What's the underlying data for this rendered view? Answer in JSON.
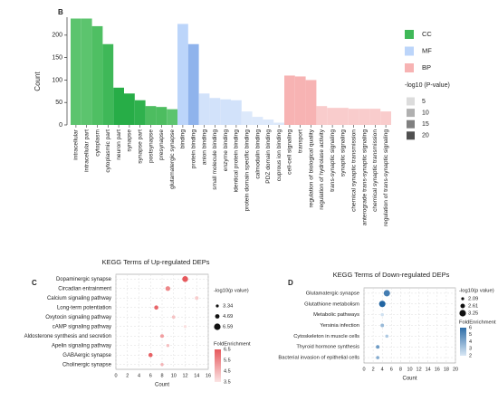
{
  "chart_data": [
    {
      "type": "bar",
      "label": "B",
      "y_label": "Count",
      "categories": [
        "intracellular",
        "intracellular part",
        "cytoplasm",
        "cytoplasmic part",
        "neuron part",
        "synapse",
        "synapse part",
        "postsynapse",
        "presynapse",
        "glutamatergic synapse",
        "binding",
        "protein binding",
        "anion binding",
        "small molecule binding",
        "enzyme binding",
        "identical protein binding",
        "protein domain specific binding",
        "calmodulin binding",
        "PDZ domain binding",
        "cuprous ion binding",
        "cell-cell signaling",
        "transport",
        "regulation of biological quality",
        "regulation of hydrolase activity",
        "trans-synaptic signaling",
        "synaptic signaling",
        "chemical synaptic transmission",
        "anterograde trans-synaptic signaling",
        "chemical synaptic transmission",
        "regulation of trans-synaptic signaling"
      ],
      "values": [
        237,
        237,
        220,
        180,
        83,
        70,
        55,
        42,
        40,
        35,
        225,
        180,
        70,
        60,
        57,
        55,
        30,
        18,
        12,
        5,
        110,
        108,
        100,
        42,
        38,
        38,
        36,
        36,
        36,
        30
      ],
      "colors": [
        "#5cc46e",
        "#5cc46e",
        "#4fbf63",
        "#3fb858",
        "#27ad47",
        "#27ad47",
        "#2fb14d",
        "#4dbd60",
        "#4dbd60",
        "#5cc46e",
        "#bcd5fa",
        "#8fb3ec",
        "#d2e2fa",
        "#d2e2fa",
        "#d2e2fa",
        "#d2e2fa",
        "#dde9fb",
        "#dde9fb",
        "#dde9fb",
        "#dde9fb",
        "#f7b3b3",
        "#f7b3b3",
        "#f7b3b3",
        "#f9cccc",
        "#f9cccc",
        "#f9cccc",
        "#f9cccc",
        "#f9cccc",
        "#f9cccc",
        "#f9cccc"
      ],
      "ylim": [
        0,
        240
      ],
      "yticks": [
        0,
        50,
        100,
        150,
        200
      ],
      "groups": [
        {
          "name": "CC",
          "color": "#3fb858"
        },
        {
          "name": "MF",
          "color": "#bcd5fa"
        },
        {
          "name": "BP",
          "color": "#f7b3b3"
        }
      ],
      "shade_legend": {
        "title": "-log10 (P-value)",
        "ticks": [
          5,
          10,
          15,
          20
        ],
        "colors": [
          "#dcdcdc",
          "#b0b0b0",
          "#808080",
          "#505050"
        ]
      }
    },
    {
      "type": "dot",
      "label": "C",
      "title": "KEGG Terms of Up-regulated DEPs",
      "x_label": "Count",
      "categories": [
        "Dopaminergic synapse",
        "Circadian entrainment",
        "Calcium signaling pathway",
        "Long-term potentiation",
        "Oxytocin signaling pathway",
        "cAMP signaling pathway",
        "Aldosterone synthesis and secretion",
        "Apelin signaling pathway",
        "GABAergic synapse",
        "Cholinergic synapse"
      ],
      "values": [
        12,
        9,
        14,
        7,
        10,
        12,
        8,
        9,
        6,
        8
      ],
      "sizes": [
        6.0,
        5.0,
        4.0,
        4.5,
        3.8,
        3.4,
        4.0,
        3.5,
        4.5,
        3.5
      ],
      "fold_enrichment": [
        6.5,
        5.5,
        4.0,
        6.2,
        4.2,
        3.6,
        5.0,
        4.3,
        6.3,
        4.5
      ],
      "xlim": [
        0,
        16
      ],
      "xticks": [
        0,
        2,
        4,
        6,
        8,
        10,
        12,
        14,
        16
      ],
      "size_legend": {
        "title": "-log10(p value)",
        "values": [
          3.34,
          4.69,
          6.59
        ]
      },
      "color_legend": {
        "title": "FoldEnrichment",
        "ticks": [
          6.5,
          5.5,
          4.5,
          3.5
        ],
        "colors": [
          "#e6585c",
          "#fbe4e4"
        ]
      }
    },
    {
      "type": "dot",
      "label": "D",
      "title": "KEGG Terms of Down-regulated DEPs",
      "x_label": "Count",
      "categories": [
        "Glutamatergic synapse",
        "Glutathione metabolism",
        "Metabolic pathways",
        "Yersinia infection",
        "Cytoskeleton in muscle cells",
        "Thyroid hormone synthesis",
        "Bacterial invasion of epithelial cells"
      ],
      "values": [
        5,
        4,
        4,
        4,
        5,
        3,
        3
      ],
      "sizes": [
        3.2,
        3.2,
        2.2,
        2.3,
        2.2,
        2.3,
        2.2
      ],
      "fold_enrichment": [
        5.5,
        6.3,
        2.2,
        3.5,
        3.0,
        4.5,
        4.0
      ],
      "xlim": [
        0,
        20
      ],
      "xticks": [
        0,
        2,
        4,
        6,
        8,
        10,
        12,
        14,
        16,
        18,
        20
      ],
      "size_legend": {
        "title": "-log10(p value)",
        "values": [
          2.09,
          2.61,
          3.25
        ]
      },
      "color_legend": {
        "title": "FoldEnrichment",
        "ticks": [
          6,
          5,
          4,
          3,
          2
        ],
        "colors": [
          "#2f6ea8",
          "#d8e7f5"
        ]
      }
    }
  ]
}
